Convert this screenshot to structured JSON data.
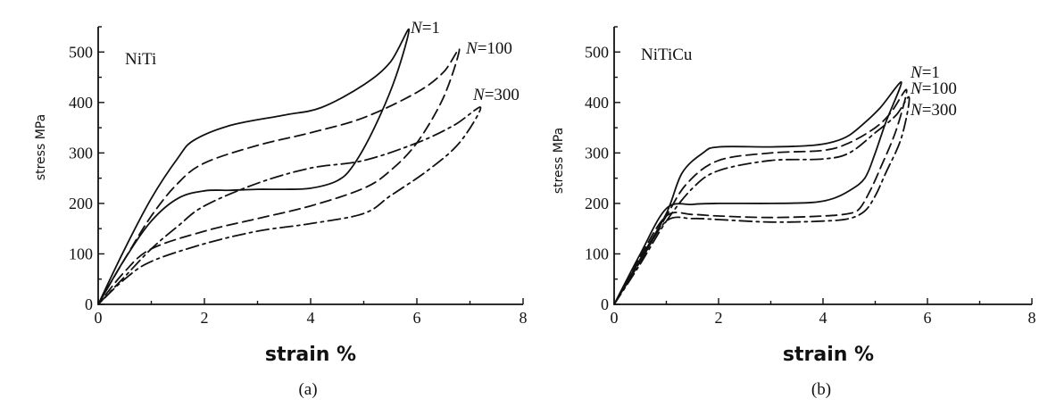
{
  "chart_data": [
    {
      "panel": "a",
      "type": "line",
      "title": "NiTi",
      "caption": "(a)",
      "xlabel": "strain %",
      "ylabel": "stress MPa",
      "xlim": [
        0,
        8
      ],
      "ylim": [
        0,
        550
      ],
      "xticks": [
        0,
        2,
        4,
        6,
        8
      ],
      "yticks": [
        0,
        100,
        200,
        300,
        400,
        500
      ],
      "series": [
        {
          "name": "N=1",
          "n_prefix": "N",
          "n_value": "=1",
          "style": "solid",
          "x": [
            0,
            0.5,
            1.0,
            1.5,
            1.8,
            2.5,
            3.5,
            4.2,
            5.0,
            5.5,
            5.85,
            5.6,
            5.2,
            4.8,
            4.5,
            4.0,
            3.5,
            3.0,
            2.5,
            2.0,
            1.5,
            1.0,
            0.5,
            0
          ],
          "y": [
            0,
            110,
            210,
            290,
            325,
            355,
            375,
            390,
            435,
            480,
            545,
            450,
            350,
            275,
            245,
            230,
            228,
            228,
            226,
            225,
            210,
            165,
            90,
            0
          ]
        },
        {
          "name": "N=100",
          "n_prefix": "N",
          "n_value": "=100",
          "style": "dashed",
          "x": [
            0,
            0.5,
            1.0,
            1.5,
            2.0,
            3.0,
            4.0,
            5.0,
            6.0,
            6.5,
            6.8,
            6.5,
            6.0,
            5.5,
            5.0,
            4.0,
            3.0,
            2.0,
            1.0,
            0.5,
            0
          ],
          "y": [
            0,
            90,
            175,
            240,
            280,
            315,
            340,
            370,
            420,
            460,
            505,
            410,
            320,
            265,
            230,
            195,
            170,
            145,
            110,
            65,
            0
          ]
        },
        {
          "name": "N=300",
          "n_prefix": "N",
          "n_value": "=300",
          "style": "dashdot",
          "x": [
            0,
            0.5,
            1.0,
            1.5,
            2.0,
            3.0,
            4.0,
            5.0,
            6.0,
            6.7,
            7.2,
            6.8,
            6.2,
            5.5,
            5.0,
            4.0,
            3.0,
            2.0,
            1.0,
            0.5,
            0
          ],
          "y": [
            0,
            55,
            110,
            155,
            195,
            240,
            270,
            285,
            320,
            355,
            390,
            320,
            265,
            215,
            180,
            160,
            145,
            120,
            85,
            50,
            0
          ]
        }
      ]
    },
    {
      "panel": "b",
      "type": "line",
      "title": "NiTiCu",
      "caption": "(b)",
      "xlabel": "strain %",
      "ylabel": "stress MPa",
      "xlim": [
        0,
        8
      ],
      "ylim": [
        0,
        550
      ],
      "xticks": [
        0,
        2,
        4,
        6,
        8
      ],
      "yticks": [
        0,
        100,
        200,
        300,
        400,
        500
      ],
      "series": [
        {
          "name": "N=1",
          "n_prefix": "N",
          "n_value": "=1",
          "style": "solid",
          "x": [
            0,
            0.5,
            1.0,
            1.3,
            1.7,
            2.0,
            3.0,
            3.8,
            4.2,
            4.5,
            4.8,
            5.1,
            5.5,
            5.2,
            5.0,
            4.8,
            4.5,
            4.2,
            3.8,
            3.0,
            2.0,
            1.5,
            1.0,
            0.5,
            0
          ],
          "y": [
            0,
            90,
            180,
            260,
            300,
            312,
            312,
            315,
            322,
            335,
            360,
            390,
            440,
            360,
            300,
            250,
            225,
            210,
            202,
            200,
            200,
            198,
            190,
            100,
            0
          ]
        },
        {
          "name": "N=100",
          "n_prefix": "N",
          "n_value": "=100",
          "style": "dashed",
          "x": [
            0,
            0.5,
            1.0,
            1.4,
            2.0,
            3.0,
            4.0,
            4.5,
            5.0,
            5.3,
            5.6,
            5.4,
            5.1,
            4.9,
            4.7,
            4.5,
            4.0,
            3.0,
            2.0,
            1.5,
            1.0,
            0.5,
            0
          ],
          "y": [
            0,
            85,
            175,
            240,
            285,
            300,
            305,
            320,
            350,
            380,
            425,
            345,
            270,
            225,
            190,
            180,
            175,
            172,
            175,
            178,
            175,
            95,
            0
          ]
        },
        {
          "name": "N=300",
          "n_prefix": "N",
          "n_value": "=300",
          "style": "dashdot",
          "x": [
            0,
            0.5,
            1.0,
            1.5,
            2.0,
            3.0,
            4.0,
            4.5,
            5.0,
            5.4,
            5.65,
            5.5,
            5.2,
            5.0,
            4.8,
            4.5,
            4.0,
            3.0,
            2.0,
            1.5,
            1.0,
            0.5,
            0
          ],
          "y": [
            0,
            80,
            165,
            230,
            265,
            285,
            288,
            300,
            340,
            375,
            410,
            330,
            260,
            215,
            185,
            170,
            165,
            163,
            168,
            170,
            165,
            85,
            0
          ]
        }
      ]
    }
  ]
}
